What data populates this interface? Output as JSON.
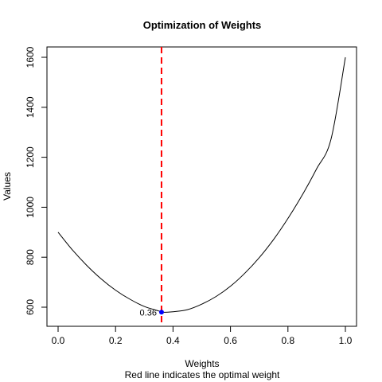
{
  "chart_data": {
    "type": "line",
    "title": "Optimization of Weights",
    "xlabel": "Weights",
    "ylabel": "Values",
    "caption": "Red line indicates the optimal weight",
    "xlim": [
      0,
      1
    ],
    "ylim": [
      580,
      1600
    ],
    "xticks": [
      "0.0",
      "0.2",
      "0.4",
      "0.6",
      "0.8",
      "1.0"
    ],
    "yticks": [
      "600",
      "800",
      "1000",
      "1200",
      "1400",
      "1600"
    ],
    "series": [
      {
        "color": "#000000",
        "x": [
          0,
          0.05,
          0.1,
          0.15,
          0.2,
          0.25,
          0.3,
          0.35,
          0.36,
          0.4,
          0.45,
          0.5,
          0.55,
          0.6,
          0.65,
          0.7,
          0.75,
          0.8,
          0.85,
          0.9,
          0.95,
          1.0
        ],
        "y": [
          900,
          829,
          767,
          713,
          668,
          632,
          603,
          585,
          580,
          582,
          590,
          612,
          643,
          684,
          736,
          798,
          871,
          955,
          1049,
          1154,
          1272,
          1600
        ]
      }
    ],
    "optimal": {
      "x": 0.36,
      "y": 580,
      "label": "0.36",
      "line_color": "#ff0000",
      "point_color": "#0000ff"
    },
    "grid": false,
    "legend": "none"
  }
}
